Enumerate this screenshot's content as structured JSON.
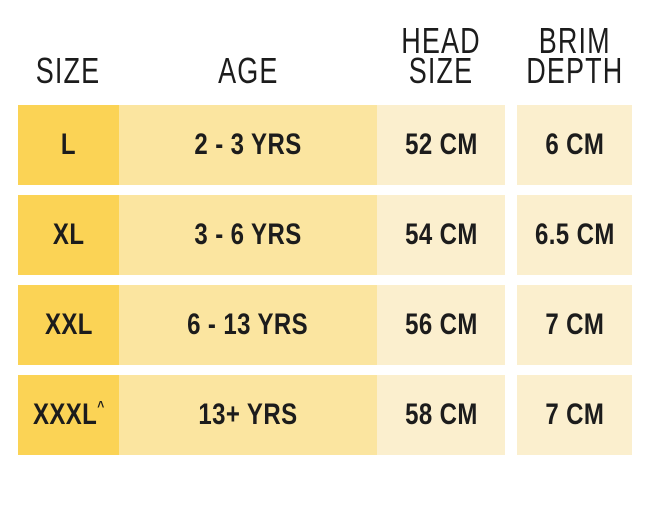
{
  "colors": {
    "size_cell": "#fbd355",
    "age_cell": "#fbe5a0",
    "metric_cell": "#fbefce",
    "text": "#1c1c1c",
    "background": "#ffffff"
  },
  "chart_data": {
    "type": "table",
    "columns": [
      "SIZE",
      "AGE",
      "HEAD SIZE",
      "BRIM DEPTH"
    ],
    "rows": [
      [
        "L",
        "2 - 3 YRS",
        "52 CM",
        "6 CM"
      ],
      [
        "XL",
        "3 - 6 YRS",
        "54 CM",
        "6.5 CM"
      ],
      [
        "XXL",
        "6 - 13 YRS",
        "56 CM",
        "7 CM"
      ],
      [
        "XXXL^",
        "13+ YRS",
        "58 CM",
        "7 CM"
      ]
    ]
  },
  "table": {
    "headers": {
      "size": "SIZE",
      "age": "AGE",
      "head_size_line1": "HEAD",
      "head_size_line2": "SIZE",
      "brim_depth_line1": "BRIM",
      "brim_depth_line2": "DEPTH"
    },
    "rows": [
      {
        "size": "L",
        "size_note": "",
        "age": "2 - 3 YRS",
        "head_size": "52 CM",
        "brim_depth": "6 CM"
      },
      {
        "size": "XL",
        "size_note": "",
        "age": "3 - 6 YRS",
        "head_size": "54 CM",
        "brim_depth": "6.5 CM"
      },
      {
        "size": "XXL",
        "size_note": "",
        "age": "6 - 13 YRS",
        "head_size": "56 CM",
        "brim_depth": "7 CM"
      },
      {
        "size": "XXXL",
        "size_note": "^",
        "age": "13+ YRS",
        "head_size": "58 CM",
        "brim_depth": "7 CM"
      }
    ]
  }
}
